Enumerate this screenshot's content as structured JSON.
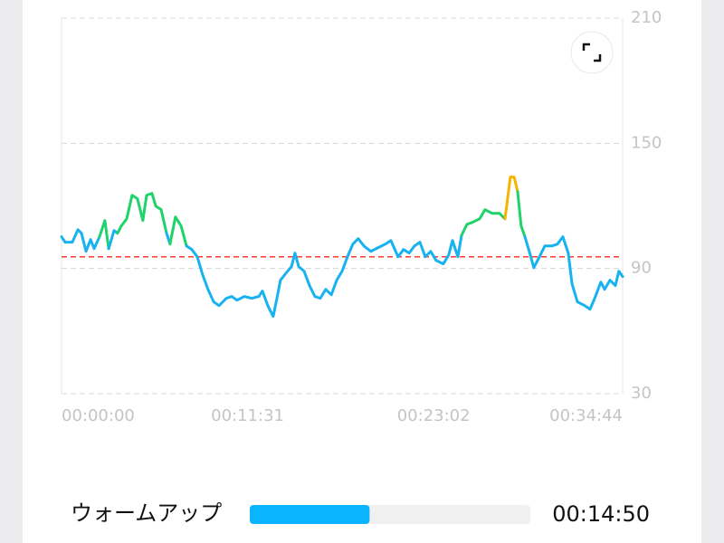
{
  "chart_data": {
    "type": "line",
    "x": [
      0,
      13,
      40,
      61,
      74,
      91,
      108,
      121,
      141,
      161,
      175,
      195,
      208,
      222,
      242,
      262,
      282,
      302,
      316,
      336,
      350,
      370,
      390,
      403,
      423,
      444,
      464,
      484,
      504,
      524,
      544,
      565,
      585,
      612,
      632,
      652,
      679,
      706,
      733,
      746,
      766,
      786,
      800,
      813,
      834,
      854,
      867,
      881,
      901,
      921,
      941,
      961,
      981,
      1002,
      1022,
      1042,
      1062,
      1082,
      1102,
      1123,
      1149,
      1176,
      1203,
      1223,
      1250,
      1270,
      1291,
      1311,
      1331,
      1351,
      1371,
      1391,
      1418,
      1438,
      1452,
      1472,
      1486,
      1506,
      1526,
      1553,
      1573,
      1600,
      1627,
      1647,
      1667,
      1681,
      1694,
      1707,
      1721,
      1741,
      1754,
      1775,
      1795,
      1822,
      1842,
      1862,
      1882,
      1896,
      1916,
      1943,
      1963,
      1983,
      2003,
      2017,
      2037,
      2057,
      2070,
      2084
    ],
    "series": [
      {
        "color": "#18b2f0",
        "values": [
          105.2,
          102.6,
          102.6,
          108.6,
          106.9,
          98.2,
          103.9,
          99.5,
          105.2,
          113.0,
          99.5,
          108.2,
          106.9,
          110.4,
          113.8,
          125.1,
          123.4,
          113.0,
          125.1,
          126.0,
          119.9,
          118.2,
          106.9,
          101.7,
          114.7,
          110.4,
          100.8,
          99.1,
          95.6,
          87.0,
          80.0,
          74.0,
          72.2,
          75.7,
          76.6,
          74.8,
          76.6,
          75.7,
          76.6,
          79.2,
          72.2,
          67.0,
          75.7,
          84.4,
          87.8,
          90.9,
          97.4,
          90.9,
          88.7,
          81.8,
          76.6,
          75.7,
          80.0,
          77.4,
          84.4,
          88.7,
          95.6,
          101.7,
          104.3,
          100.8,
          98.2,
          100.0,
          101.7,
          103.4,
          95.6,
          99.1,
          97.4,
          100.8,
          102.6,
          95.6,
          98.2,
          93.9,
          92.2,
          96.5,
          103.4,
          95.6,
          106.0,
          111.2,
          112.1,
          113.8,
          118.2,
          116.4,
          116.4,
          113.8,
          133.8,
          133.8,
          126.8,
          110.4,
          105.2,
          96.5,
          90.4,
          95.6,
          100.8,
          100.8,
          101.7,
          105.2,
          97.4,
          82.6,
          74.0,
          72.2,
          70.5,
          76.6,
          83.5,
          80.0,
          84.4,
          81.8,
          88.7,
          86.1
        ]
      }
    ],
    "zones": [
      {
        "from": 110,
        "color": "#1fd26a"
      },
      {
        "from": 130,
        "color": "#f5b400"
      }
    ],
    "reference_line": {
      "value": 95.6,
      "color": "#ff3b30"
    },
    "xlim": [
      0,
      2084
    ],
    "xticks": [
      {
        "value": 0,
        "label": "00:00:00"
      },
      {
        "value": 691,
        "label": "00:11:31"
      },
      {
        "value": 1382,
        "label": "00:23:02"
      },
      {
        "value": 2084,
        "label": "00:34:44"
      }
    ],
    "ylim": [
      30,
      210
    ],
    "yticks": [
      30,
      90,
      150,
      210
    ],
    "grid": true
  },
  "zone_summary": {
    "label": "ウォームアップ",
    "duration": {
      "value": 890,
      "label": "00:14:50"
    },
    "color": "#0bb4ff"
  }
}
